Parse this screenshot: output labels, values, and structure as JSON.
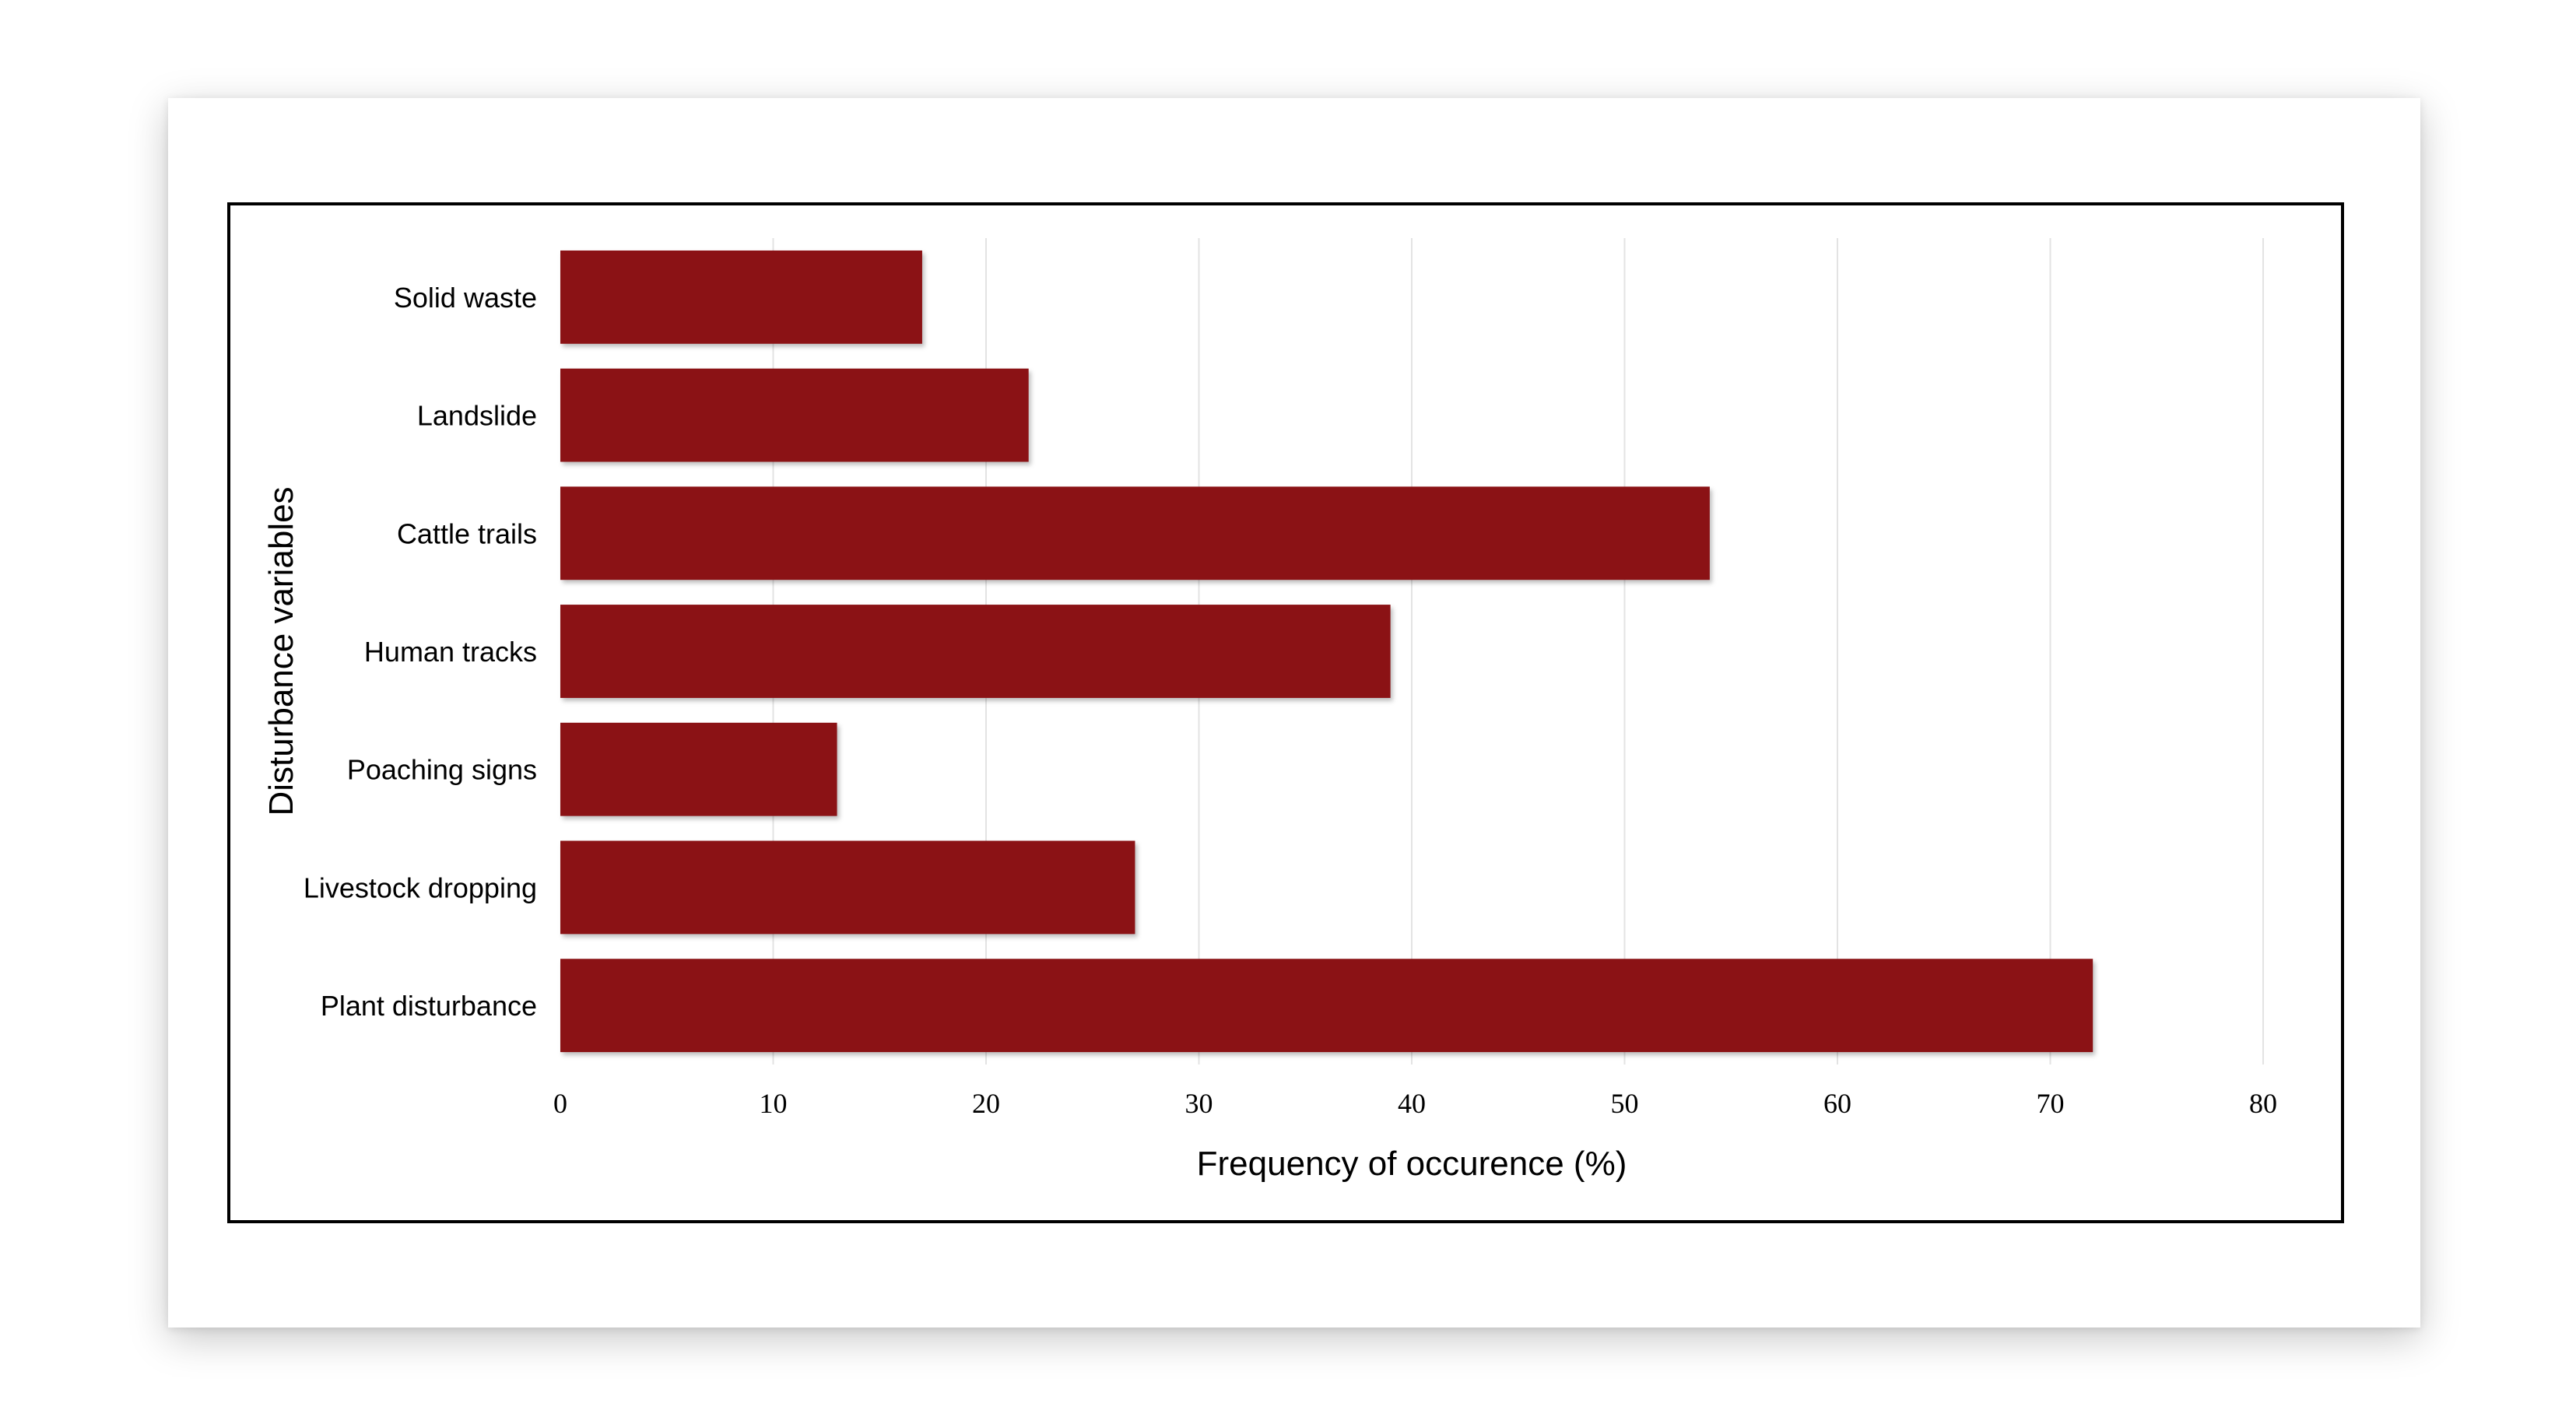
{
  "chart_data": {
    "type": "bar",
    "orientation": "horizontal",
    "categories": [
      "Solid waste",
      "Landslide",
      "Cattle trails",
      "Human tracks",
      "Poaching signs",
      "Livestock dropping",
      "Plant disturbance"
    ],
    "values": [
      17,
      22,
      54,
      39,
      13,
      27,
      72
    ],
    "xlabel": "Frequency of occurence (%)",
    "ylabel": "Disturbance variables",
    "xlim": [
      0,
      80
    ],
    "xticks": [
      "0",
      "10",
      "20",
      "30",
      "40",
      "50",
      "60",
      "70",
      "80"
    ],
    "grid": "vertical",
    "legend": "none",
    "bar_color": "#8b1215"
  }
}
